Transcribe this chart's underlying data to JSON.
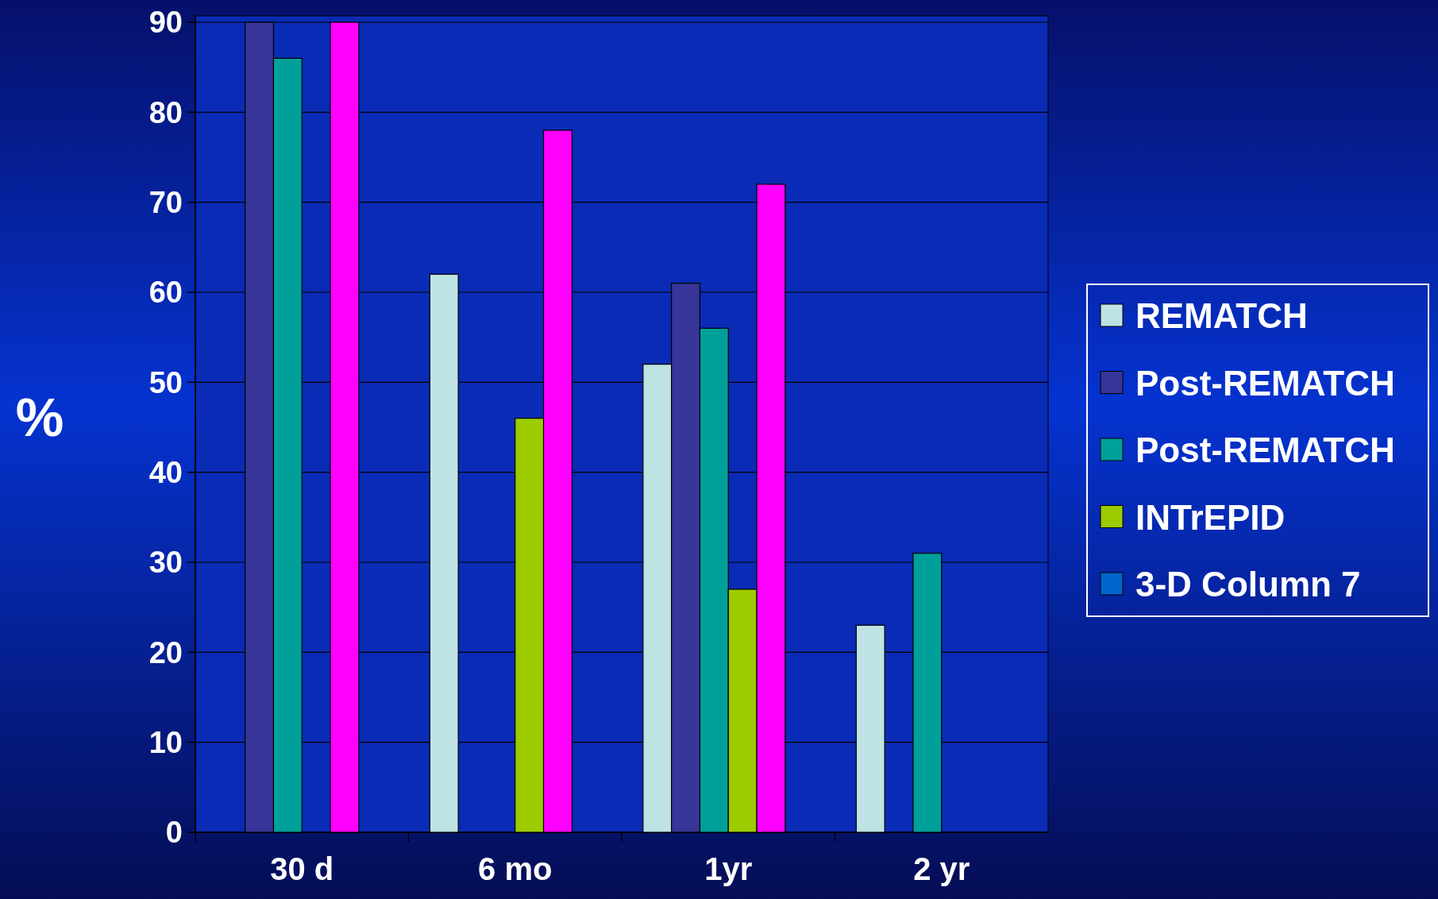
{
  "chart_data": {
    "type": "bar",
    "ylabel": "%",
    "categories": [
      "30 d",
      "6 mo",
      "1yr",
      "2 yr"
    ],
    "ylim": [
      0,
      90
    ],
    "yticks": [
      0,
      10,
      20,
      30,
      40,
      50,
      60,
      70,
      80,
      90
    ],
    "grid": "y",
    "legend": "right",
    "series": [
      {
        "name": "REMATCH",
        "color": "#bde3e3",
        "values": [
          null,
          62,
          52,
          23
        ]
      },
      {
        "name": "Post-REMATCH",
        "color": "#373597",
        "values": [
          90,
          null,
          61,
          null
        ]
      },
      {
        "name": "Post-REMATCH",
        "color": "#00a09a",
        "values": [
          86,
          null,
          56,
          31
        ]
      },
      {
        "name": "INTrEPID",
        "color": "#9ccc00",
        "values": [
          null,
          46,
          27,
          null
        ]
      },
      {
        "color": "#ff00ff",
        "values": [
          90,
          78,
          72,
          null
        ]
      },
      {
        "name": "3-D Column 7",
        "color": "#0066cc",
        "values": [
          null,
          null,
          null,
          null
        ]
      }
    ]
  }
}
